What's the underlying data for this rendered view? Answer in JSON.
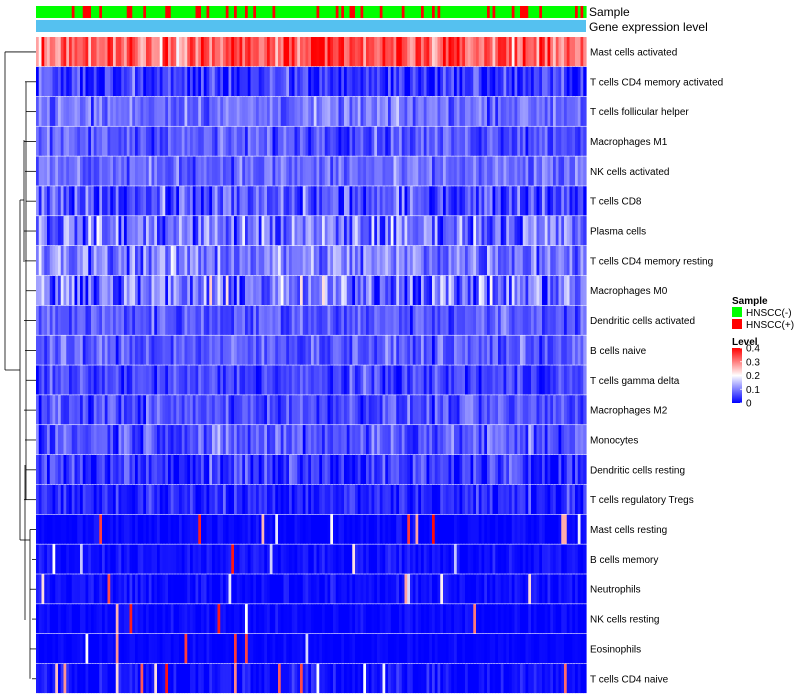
{
  "chart_data": {
    "type": "heatmap",
    "title": "",
    "annotation_tracks": [
      {
        "name": "Sample",
        "label": "Sample"
      },
      {
        "name": "Gene expression level",
        "label": "Gene expression level"
      }
    ],
    "rows": [
      {
        "label": "Mast cells activated",
        "mean": 0.33,
        "spread": 0.07
      },
      {
        "label": "T cells CD4 memory activated",
        "mean": 0.04,
        "spread": 0.05
      },
      {
        "label": "T cells follicular helper",
        "mean": 0.09,
        "spread": 0.04
      },
      {
        "label": "Macrophages M1",
        "mean": 0.07,
        "spread": 0.04
      },
      {
        "label": "NK cells activated",
        "mean": 0.08,
        "spread": 0.04
      },
      {
        "label": "T cells CD8",
        "mean": 0.06,
        "spread": 0.06
      },
      {
        "label": "Plasma cells",
        "mean": 0.09,
        "spread": 0.07
      },
      {
        "label": "T cells CD4 memory resting",
        "mean": 0.1,
        "spread": 0.06
      },
      {
        "label": "Macrophages M0",
        "mean": 0.09,
        "spread": 0.08
      },
      {
        "label": "Dendritic cells activated",
        "mean": 0.07,
        "spread": 0.04
      },
      {
        "label": "B cells naive",
        "mean": 0.07,
        "spread": 0.04
      },
      {
        "label": "T cells gamma delta",
        "mean": 0.05,
        "spread": 0.04
      },
      {
        "label": "Macrophages M2",
        "mean": 0.06,
        "spread": 0.04
      },
      {
        "label": "Monocytes",
        "mean": 0.07,
        "spread": 0.05
      },
      {
        "label": "Dendritic cells resting",
        "mean": 0.04,
        "spread": 0.05
      },
      {
        "label": "T cells regulatory  Tregs",
        "mean": 0.03,
        "spread": 0.04
      },
      {
        "label": "Mast cells resting",
        "mean": 0.005,
        "spread": 0.015
      },
      {
        "label": "B cells memory",
        "mean": 0.01,
        "spread": 0.02
      },
      {
        "label": "Neutrophils",
        "mean": 0.01,
        "spread": 0.02
      },
      {
        "label": "NK cells resting",
        "mean": 0.005,
        "spread": 0.015
      },
      {
        "label": "Eosinophils",
        "mean": 0.003,
        "spread": 0.01
      },
      {
        "label": "T cells CD4 naive",
        "mean": 0.01,
        "spread": 0.03
      }
    ],
    "n_columns": 200,
    "color_scale": {
      "min": 0,
      "max": 0.4,
      "ticks": [
        0,
        0.1,
        0.2,
        0.3,
        0.4
      ],
      "tick_labels": [
        "0",
        "0.1",
        "0.2",
        "0.3",
        "0.4"
      ],
      "colors": [
        "#0000ff",
        "#ffffff",
        "#ff0000"
      ]
    },
    "legend": {
      "sample_title": "Sample",
      "sample_entries": [
        {
          "label": "HNSCC(-)",
          "color": "#00ff00"
        },
        {
          "label": "HNSCC(+)",
          "color": "#ff0000"
        }
      ],
      "level_title": "Level",
      "gene_expression_color": "#55c1f0"
    },
    "dendrogram": "row"
  }
}
